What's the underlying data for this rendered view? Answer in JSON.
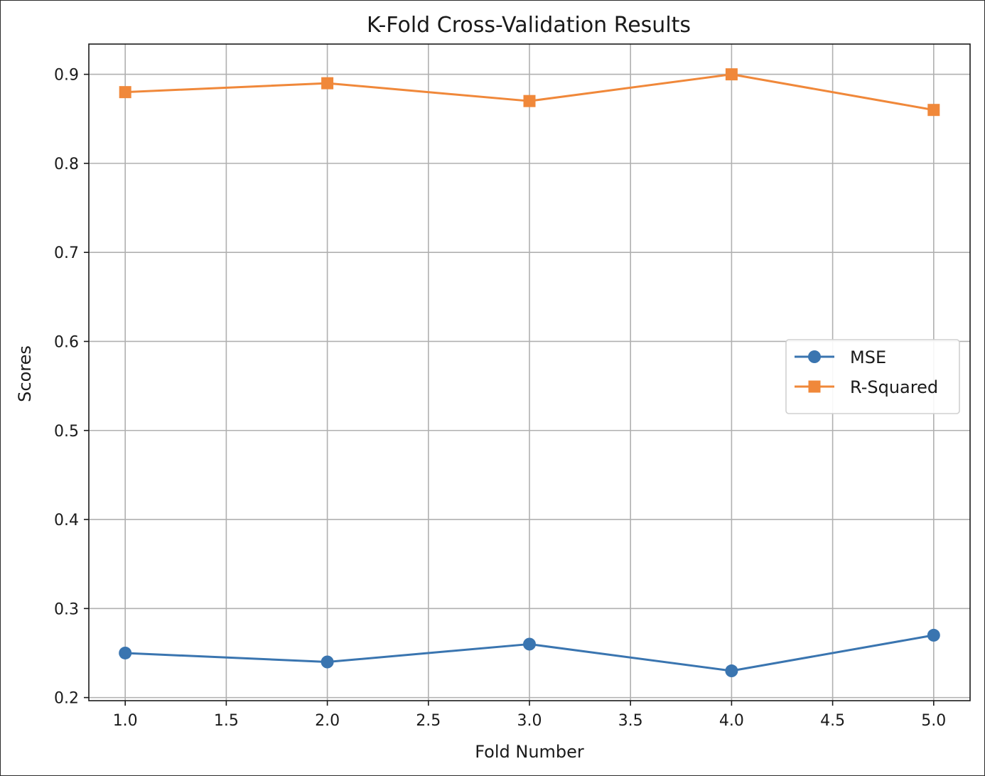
{
  "chart_data": {
    "type": "line",
    "title": "K-Fold Cross-Validation Results",
    "xlabel": "Fold Number",
    "ylabel": "Scores",
    "x": [
      1,
      2,
      3,
      4,
      5
    ],
    "xlim": [
      0.82,
      5.18
    ],
    "ylim": [
      0.1965,
      0.934
    ],
    "xticks": [
      1.0,
      1.5,
      2.0,
      2.5,
      3.0,
      3.5,
      4.0,
      4.5,
      5.0
    ],
    "xtick_labels": [
      "1.0",
      "1.5",
      "2.0",
      "2.5",
      "3.0",
      "3.5",
      "4.0",
      "4.5",
      "5.0"
    ],
    "yticks": [
      0.2,
      0.3,
      0.4,
      0.5,
      0.6,
      0.7,
      0.8,
      0.9
    ],
    "ytick_labels": [
      "0.2",
      "0.3",
      "0.4",
      "0.5",
      "0.6",
      "0.7",
      "0.8",
      "0.9"
    ],
    "grid": true,
    "legend_position": "center-right",
    "series": [
      {
        "name": "MSE",
        "values": [
          0.25,
          0.24,
          0.26,
          0.23,
          0.27
        ],
        "color": "#3a75b0",
        "marker": "circle"
      },
      {
        "name": "R-Squared",
        "values": [
          0.88,
          0.89,
          0.87,
          0.9,
          0.86
        ],
        "color": "#f0883a",
        "marker": "square"
      }
    ]
  }
}
